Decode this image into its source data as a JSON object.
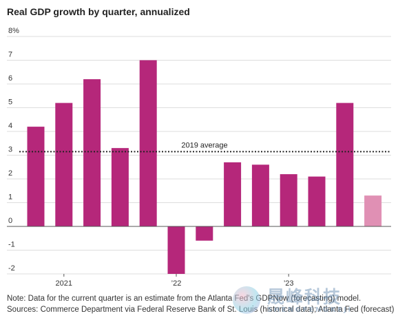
{
  "chart_data": {
    "type": "bar",
    "title": "Real GDP growth by quarter, annualized",
    "xlabel": "",
    "ylabel": "",
    "unit": "%",
    "ylim": [
      -2,
      8
    ],
    "yticks": [
      -2,
      -1,
      0,
      1,
      2,
      3,
      4,
      5,
      6,
      7,
      8
    ],
    "ytick_labels": [
      "-2",
      "-1",
      "0",
      "1",
      "2",
      "3",
      "4",
      "5",
      "6",
      "7",
      "8%"
    ],
    "x_labels": [
      {
        "label": "2021",
        "at_bar": 1
      },
      {
        "label": "’22",
        "at_bar": 5
      },
      {
        "label": "’23",
        "at_bar": 9
      }
    ],
    "values": [
      4.2,
      5.2,
      6.2,
      3.3,
      7.0,
      -2.0,
      -0.6,
      2.7,
      2.6,
      2.2,
      2.1,
      5.2,
      1.3
    ],
    "forecast_index": 12,
    "reference_line": {
      "label": "2019 average",
      "value": 3.15
    },
    "grid": true,
    "colors": {
      "bar": "#b5277a",
      "forecast": "#e090b4",
      "grid": "#dddddd",
      "zero": "#555555",
      "reference": "#222222"
    }
  },
  "notes": {
    "line1": "Note: Data for the current quarter is an estimate from the Atlanta Fed's GDPNow (forecasting) model.",
    "line2": "Sources: Commerce Department via Federal Reserve Bank of St. Louis (historical data); Atlanta Fed (forecast)"
  },
  "watermark": {
    "cn": "晟峰科技",
    "en": "SHENGFENGKEJI"
  }
}
